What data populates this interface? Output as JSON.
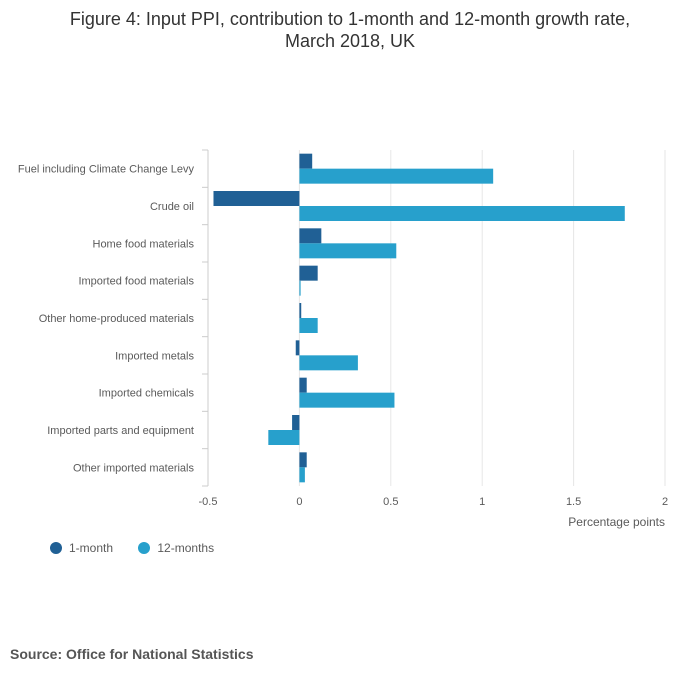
{
  "title_line1": "Figure 4: Input PPI, contribution to 1-month and 12-month growth rate,",
  "title_line2": "March 2018, UK",
  "source": "Source: Office for National Statistics",
  "colors": {
    "one_month": "#206095",
    "twelve_months": "#27a0cc"
  },
  "chart_data": {
    "type": "bar",
    "orientation": "horizontal",
    "categories": [
      "Fuel including Climate Change Levy",
      "Crude oil",
      "Home food materials",
      "Imported food materials",
      "Other home-produced materials",
      "Imported metals",
      "Imported chemicals",
      "Imported parts and equipment",
      "Other imported materials"
    ],
    "series": [
      {
        "name": "1-month",
        "values": [
          0.07,
          -0.47,
          0.12,
          0.1,
          0.01,
          -0.02,
          0.04,
          -0.04,
          0.04
        ]
      },
      {
        "name": "12-months",
        "values": [
          1.06,
          1.78,
          0.53,
          0.0,
          0.1,
          0.32,
          0.52,
          -0.17,
          0.03
        ]
      }
    ],
    "xlim": [
      -0.5,
      2
    ],
    "xticks": [
      -0.5,
      0,
      0.5,
      1,
      1.5,
      2
    ],
    "xtick_labels": [
      "-0.5",
      "0",
      "0.5",
      "1",
      "1.5",
      "2"
    ],
    "xlabel": "Percentage points",
    "legend_position": "bottom-left",
    "grid": true
  }
}
